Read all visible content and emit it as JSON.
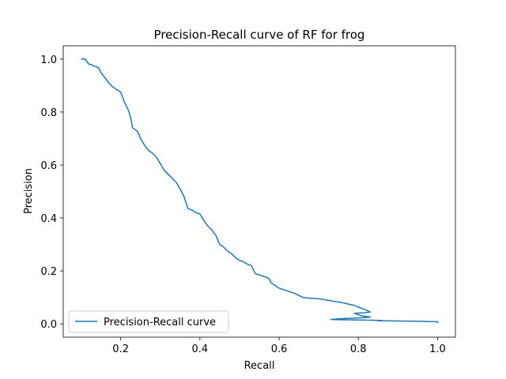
{
  "chart_data": {
    "type": "line",
    "title": "Precision-Recall curve of RF for frog",
    "xlabel": "Recall",
    "ylabel": "Precision",
    "xlim": [
      0.055,
      1.045
    ],
    "ylim": [
      -0.05,
      1.05
    ],
    "xticks": [
      0.2,
      0.4,
      0.6,
      0.8,
      1.0
    ],
    "xtick_labels": [
      "0.2",
      "0.4",
      "0.6",
      "0.8",
      "1.0"
    ],
    "yticks": [
      0.0,
      0.2,
      0.4,
      0.6,
      0.8,
      1.0
    ],
    "ytick_labels": [
      "0.0",
      "0.2",
      "0.4",
      "0.6",
      "0.8",
      "1.0"
    ],
    "grid": false,
    "legend_position": "lower-left",
    "series": [
      {
        "name": "Precision-Recall curve",
        "color": "#1f77b4",
        "x": [
          0.1,
          0.11,
          0.115,
          0.12,
          0.125,
          0.13,
          0.14,
          0.145,
          0.15,
          0.16,
          0.17,
          0.18,
          0.19,
          0.2,
          0.205,
          0.21,
          0.22,
          0.225,
          0.23,
          0.24,
          0.245,
          0.25,
          0.26,
          0.27,
          0.28,
          0.29,
          0.3,
          0.31,
          0.32,
          0.33,
          0.34,
          0.35,
          0.36,
          0.37,
          0.38,
          0.39,
          0.4,
          0.41,
          0.42,
          0.43,
          0.44,
          0.45,
          0.46,
          0.47,
          0.48,
          0.49,
          0.5,
          0.51,
          0.52,
          0.53,
          0.535,
          0.54,
          0.55,
          0.56,
          0.57,
          0.575,
          0.58,
          0.59,
          0.6,
          0.62,
          0.64,
          0.66,
          0.67,
          0.7,
          0.72,
          0.74,
          0.76,
          0.78,
          0.79,
          0.8,
          0.81,
          0.82,
          0.83,
          0.815,
          0.79,
          0.8,
          0.81,
          0.82,
          0.83,
          0.82,
          0.79,
          0.76,
          0.73,
          0.75,
          0.8,
          0.83,
          0.86,
          0.85,
          0.9,
          0.95,
          1.0,
          1.0
        ],
        "y": [
          1.0,
          1.0,
          0.99,
          0.98,
          0.98,
          0.975,
          0.97,
          0.965,
          0.95,
          0.93,
          0.91,
          0.895,
          0.885,
          0.875,
          0.855,
          0.835,
          0.805,
          0.78,
          0.74,
          0.73,
          0.72,
          0.7,
          0.675,
          0.655,
          0.645,
          0.63,
          0.605,
          0.58,
          0.565,
          0.55,
          0.535,
          0.51,
          0.48,
          0.435,
          0.43,
          0.42,
          0.415,
          0.39,
          0.37,
          0.355,
          0.335,
          0.3,
          0.29,
          0.275,
          0.265,
          0.25,
          0.24,
          0.235,
          0.225,
          0.22,
          0.205,
          0.19,
          0.185,
          0.18,
          0.175,
          0.17,
          0.155,
          0.145,
          0.135,
          0.125,
          0.115,
          0.1,
          0.098,
          0.095,
          0.09,
          0.085,
          0.08,
          0.073,
          0.07,
          0.063,
          0.058,
          0.052,
          0.045,
          0.042,
          0.04,
          0.035,
          0.03,
          0.028,
          0.026,
          0.024,
          0.022,
          0.02,
          0.017,
          0.016,
          0.015,
          0.014,
          0.013,
          0.012,
          0.011,
          0.01,
          0.008,
          0.003
        ]
      }
    ]
  }
}
